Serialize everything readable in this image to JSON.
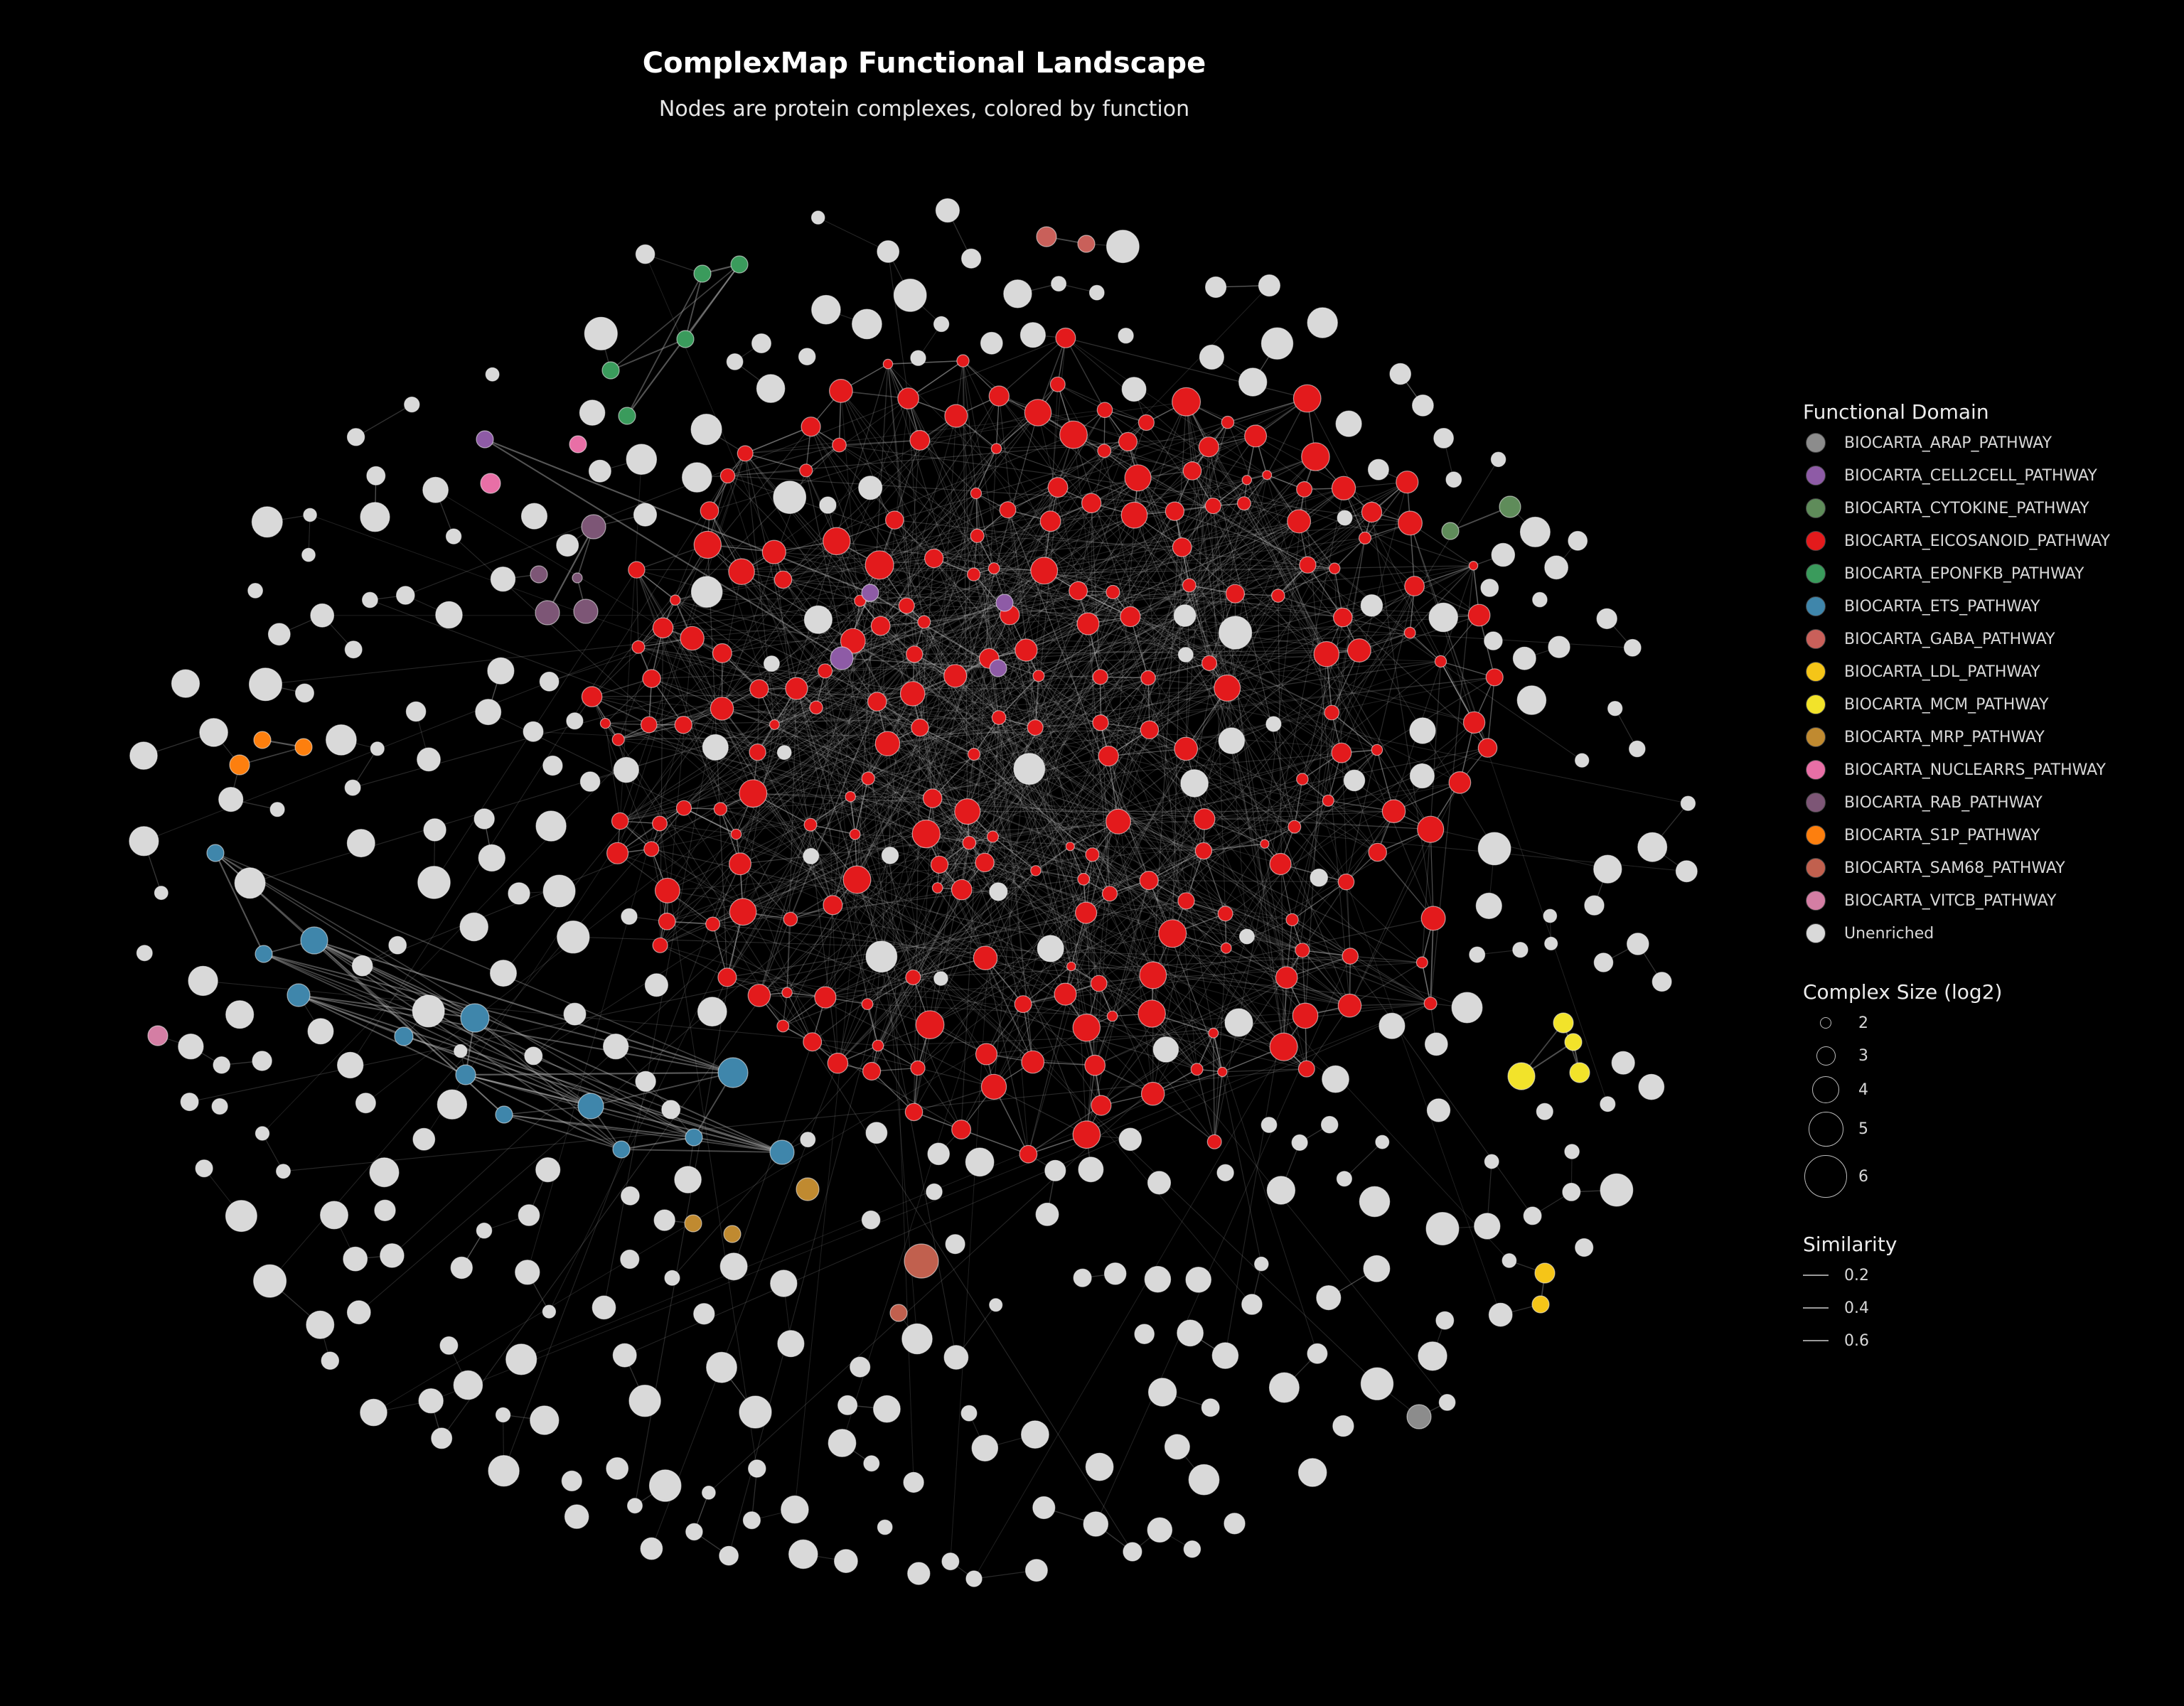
{
  "title": "ComplexMap Functional Landscape",
  "subtitle": "Nodes are protein complexes, colored by function",
  "legend": {
    "domain_title": "Functional Domain",
    "domains": [
      {
        "label": "BIOCARTA_ARAP_PATHWAY",
        "color": "#8c8c8c"
      },
      {
        "label": "BIOCARTA_CELL2CELL_PATHWAY",
        "color": "#8e5ba6"
      },
      {
        "label": "BIOCARTA_CYTOKINE_PATHWAY",
        "color": "#5f8c5a"
      },
      {
        "label": "BIOCARTA_EICOSANOID_PATHWAY",
        "color": "#e31a1c"
      },
      {
        "label": "BIOCARTA_EPONFKB_PATHWAY",
        "color": "#3a9b5c"
      },
      {
        "label": "BIOCARTA_ETS_PATHWAY",
        "color": "#3f86ab"
      },
      {
        "label": "BIOCARTA_GABA_PATHWAY",
        "color": "#c9605a"
      },
      {
        "label": "BIOCARTA_LDL_PATHWAY",
        "color": "#f5c518"
      },
      {
        "label": "BIOCARTA_MCM_PATHWAY",
        "color": "#f2e32a"
      },
      {
        "label": "BIOCARTA_MRP_PATHWAY",
        "color": "#c08a30"
      },
      {
        "label": "BIOCARTA_NUCLEARRS_PATHWAY",
        "color": "#e86fa6"
      },
      {
        "label": "BIOCARTA_RAB_PATHWAY",
        "color": "#7d5676"
      },
      {
        "label": "BIOCARTA_S1P_PATHWAY",
        "color": "#fd7f0e"
      },
      {
        "label": "BIOCARTA_SAM68_PATHWAY",
        "color": "#c1604e"
      },
      {
        "label": "BIOCARTA_VITCB_PATHWAY",
        "color": "#d47ea4"
      },
      {
        "label": "Unenriched",
        "color": "#d9d9d9"
      }
    ],
    "size_title": "Complex Size (log2)",
    "sizes": [
      {
        "label": "2",
        "value": 2
      },
      {
        "label": "3",
        "value": 3
      },
      {
        "label": "4",
        "value": 4
      },
      {
        "label": "5",
        "value": 5
      },
      {
        "label": "6",
        "value": 6
      }
    ],
    "similarity_title": "Similarity",
    "similarities": [
      {
        "label": "0.2",
        "value": 0.2
      },
      {
        "label": "0.4",
        "value": 0.4
      },
      {
        "label": "0.6",
        "value": 0.6
      }
    ]
  }
}
